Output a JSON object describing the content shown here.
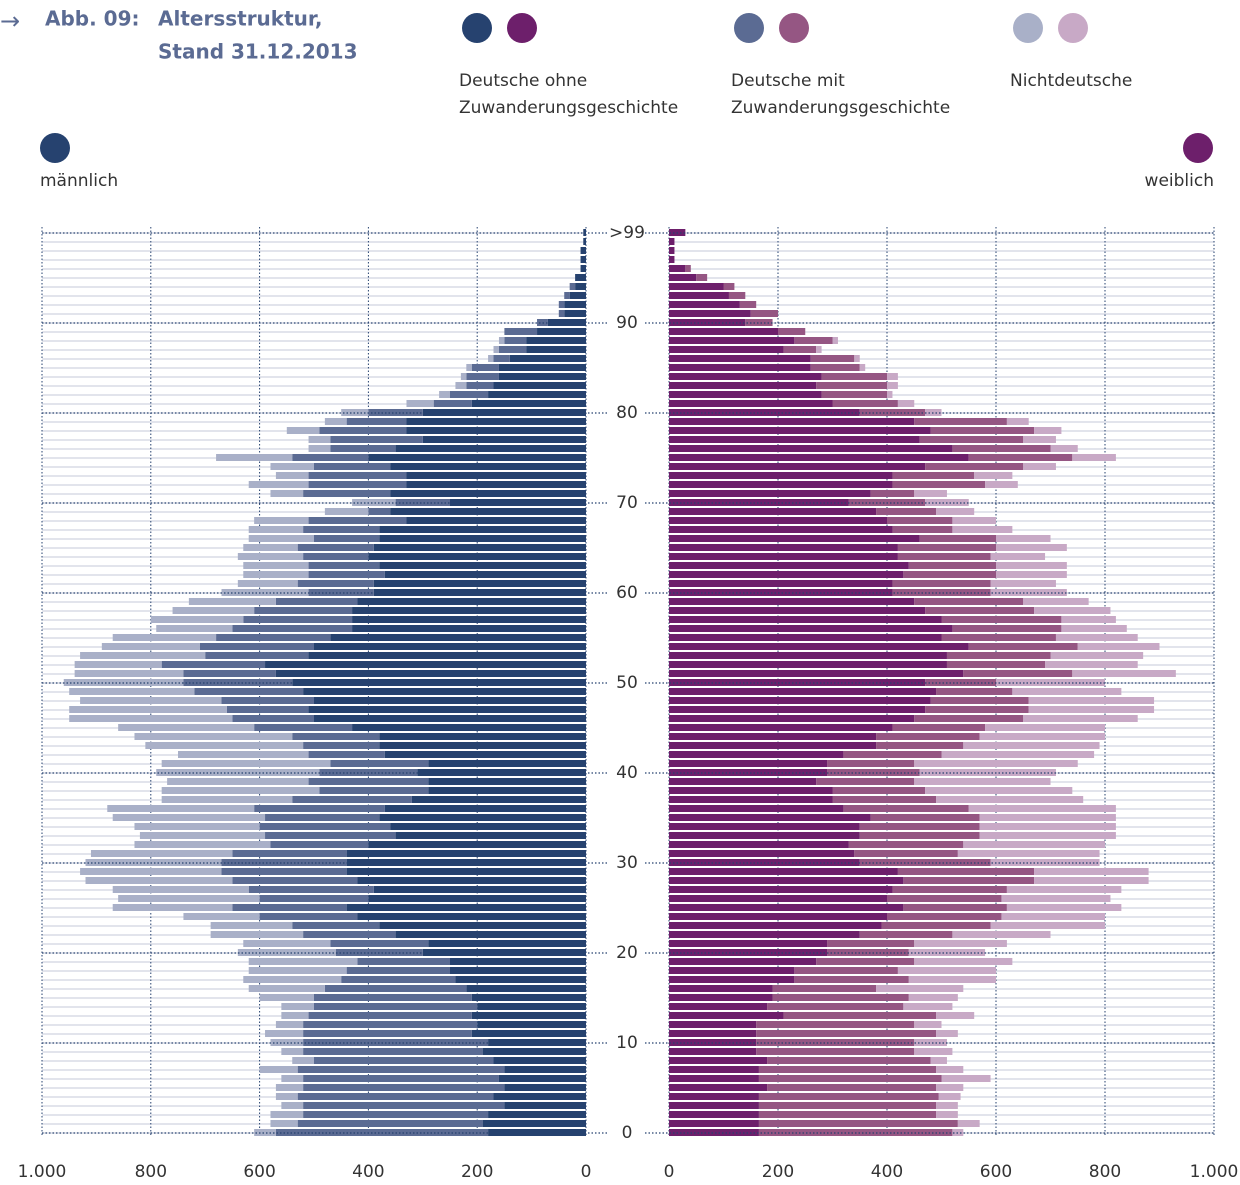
{
  "chart_data": {
    "type": "pyramid",
    "label": "Abb. 09:",
    "title": [
      "Altersstruktur,",
      "Stand 31.12.2013"
    ],
    "groups": [
      {
        "name": [
          "Deutsche ohne",
          "Zuwanderungsgeschichte"
        ],
        "colors": [
          "#26426f",
          "#6d1f6b"
        ]
      },
      {
        "name": [
          "Deutsche mit",
          "Zuwanderungsgeschichte"
        ],
        "colors": [
          "#5b6b93",
          "#955683"
        ]
      },
      {
        "name": [
          "Nichtdeutsche"
        ],
        "colors": [
          "#a9b0c8",
          "#c8a9c6"
        ]
      }
    ],
    "categories": [
      "0",
      null,
      null,
      null,
      null,
      null,
      null,
      null,
      null,
      null,
      "10",
      null,
      null,
      null,
      null,
      null,
      null,
      null,
      null,
      null,
      "20",
      null,
      null,
      null,
      null,
      null,
      null,
      null,
      null,
      null,
      "30",
      null,
      null,
      null,
      null,
      null,
      null,
      null,
      null,
      null,
      "40",
      null,
      null,
      null,
      null,
      null,
      null,
      null,
      null,
      null,
      "50",
      null,
      null,
      null,
      null,
      null,
      null,
      null,
      null,
      null,
      "60",
      null,
      null,
      null,
      null,
      null,
      null,
      null,
      null,
      null,
      "70",
      null,
      null,
      null,
      null,
      null,
      null,
      null,
      null,
      null,
      "80",
      null,
      null,
      null,
      null,
      null,
      null,
      null,
      null,
      null,
      "90",
      null,
      null,
      null,
      null,
      null,
      null,
      null,
      null,
      null,
      ">99"
    ],
    "xlim": [
      0,
      1000
    ],
    "xticks": [
      0,
      200,
      400,
      600,
      800,
      {
        "value": 1000,
        "label": "1.000"
      }
    ],
    "sides": [
      {
        "name": "männlich",
        "color": "#26426f",
        "values": [
          [
            180,
            190,
            180,
            150,
            170,
            150,
            160,
            150,
            170,
            190,
            180,
            210,
            200,
            210,
            200,
            210,
            220,
            240,
            250,
            250,
            300,
            290,
            350,
            380,
            420,
            440,
            400,
            390,
            420,
            440,
            440,
            440,
            400,
            350,
            360,
            380,
            370,
            320,
            290,
            290,
            310,
            290,
            370,
            380,
            380,
            430,
            500,
            510,
            500,
            520,
            540,
            570,
            590,
            510,
            500,
            470,
            430,
            430,
            430,
            420,
            390,
            390,
            370,
            380,
            400,
            390,
            380,
            380,
            330,
            360,
            250,
            360,
            330,
            330,
            360,
            400,
            350,
            300,
            330,
            330,
            300,
            210,
            180,
            170,
            160,
            160,
            140,
            110,
            110,
            90,
            70,
            40,
            40,
            30,
            20,
            20,
            10,
            10,
            10,
            5,
            5
          ],
          [
            390,
            340,
            340,
            370,
            360,
            370,
            360,
            380,
            330,
            330,
            340,
            310,
            320,
            300,
            300,
            290,
            260,
            210,
            190,
            170,
            160,
            180,
            170,
            160,
            180,
            210,
            200,
            230,
            230,
            230,
            230,
            210,
            180,
            240,
            240,
            210,
            240,
            220,
            200,
            220,
            180,
            180,
            140,
            140,
            160,
            180,
            150,
            150,
            170,
            200,
            200,
            170,
            190,
            190,
            210,
            210,
            220,
            200,
            180,
            150,
            120,
            140,
            140,
            130,
            120,
            140,
            120,
            140,
            180,
            40,
            100,
            160,
            180,
            180,
            140,
            140,
            120,
            170,
            160,
            110,
            100,
            70,
            70,
            50,
            60,
            50,
            30,
            50,
            40,
            60,
            20,
            10,
            10,
            10,
            10,
            0,
            0,
            0,
            0,
            0,
            0
          ],
          [
            40,
            50,
            60,
            40,
            40,
            50,
            40,
            70,
            40,
            40,
            60,
            70,
            50,
            50,
            60,
            100,
            140,
            180,
            180,
            200,
            180,
            160,
            170,
            150,
            140,
            220,
            260,
            250,
            270,
            260,
            250,
            260,
            250,
            230,
            230,
            280,
            270,
            240,
            290,
            260,
            300,
            310,
            240,
            290,
            290,
            250,
            300,
            290,
            260,
            230,
            220,
            200,
            160,
            230,
            180,
            190,
            140,
            170,
            150,
            160,
            160,
            110,
            120,
            120,
            120,
            100,
            120,
            100,
            100,
            80,
            80,
            60,
            110,
            60,
            80,
            140,
            40,
            40,
            60,
            40,
            50,
            50,
            20,
            20,
            10,
            10,
            10,
            10,
            10,
            0,
            0,
            0,
            0,
            0,
            0,
            0,
            0,
            0,
            0,
            0,
            0
          ]
        ]
      },
      {
        "name": "weiblich",
        "color": "#6d1f6b",
        "values": [
          [
            165,
            165,
            165,
            165,
            165,
            180,
            165,
            165,
            180,
            160,
            160,
            160,
            160,
            210,
            180,
            190,
            190,
            230,
            230,
            270,
            290,
            290,
            350,
            390,
            400,
            430,
            400,
            410,
            430,
            420,
            350,
            340,
            330,
            350,
            350,
            370,
            320,
            300,
            300,
            270,
            290,
            290,
            320,
            380,
            380,
            410,
            450,
            470,
            480,
            490,
            470,
            540,
            510,
            510,
            550,
            500,
            520,
            500,
            470,
            450,
            410,
            410,
            430,
            440,
            420,
            420,
            460,
            410,
            400,
            380,
            330,
            370,
            410,
            410,
            470,
            550,
            520,
            460,
            480,
            450,
            350,
            300,
            280,
            270,
            280,
            260,
            260,
            210,
            230,
            200,
            140,
            150,
            130,
            110,
            100,
            50,
            30,
            10,
            10,
            10,
            30
          ],
          [
            355,
            365,
            325,
            325,
            330,
            310,
            335,
            325,
            300,
            290,
            290,
            330,
            290,
            280,
            250,
            250,
            190,
            210,
            190,
            180,
            150,
            160,
            170,
            200,
            210,
            190,
            210,
            210,
            240,
            250,
            240,
            190,
            210,
            220,
            220,
            200,
            230,
            190,
            170,
            180,
            170,
            160,
            180,
            160,
            190,
            170,
            200,
            190,
            180,
            140,
            130,
            200,
            180,
            190,
            200,
            210,
            200,
            220,
            200,
            200,
            180,
            180,
            170,
            160,
            170,
            180,
            140,
            110,
            120,
            110,
            140,
            80,
            170,
            150,
            180,
            190,
            180,
            190,
            190,
            170,
            120,
            120,
            120,
            130,
            120,
            90,
            80,
            60,
            70,
            50,
            50,
            50,
            30,
            30,
            20,
            20,
            10,
            0,
            0,
            0,
            0
          ],
          [
            20,
            40,
            40,
            40,
            40,
            50,
            90,
            50,
            30,
            70,
            60,
            40,
            50,
            70,
            90,
            90,
            160,
            160,
            180,
            180,
            140,
            170,
            180,
            210,
            190,
            210,
            200,
            210,
            210,
            210,
            200,
            260,
            260,
            250,
            250,
            250,
            270,
            270,
            270,
            250,
            250,
            300,
            280,
            250,
            230,
            220,
            210,
            230,
            230,
            200,
            200,
            190,
            170,
            170,
            150,
            150,
            120,
            100,
            140,
            120,
            140,
            120,
            130,
            130,
            100,
            130,
            100,
            110,
            80,
            70,
            80,
            60,
            60,
            70,
            60,
            80,
            50,
            60,
            50,
            40,
            30,
            30,
            10,
            20,
            20,
            10,
            10,
            10,
            10,
            0,
            0,
            0,
            0,
            0,
            0,
            0,
            0,
            0,
            0,
            0,
            0
          ]
        ]
      }
    ]
  }
}
